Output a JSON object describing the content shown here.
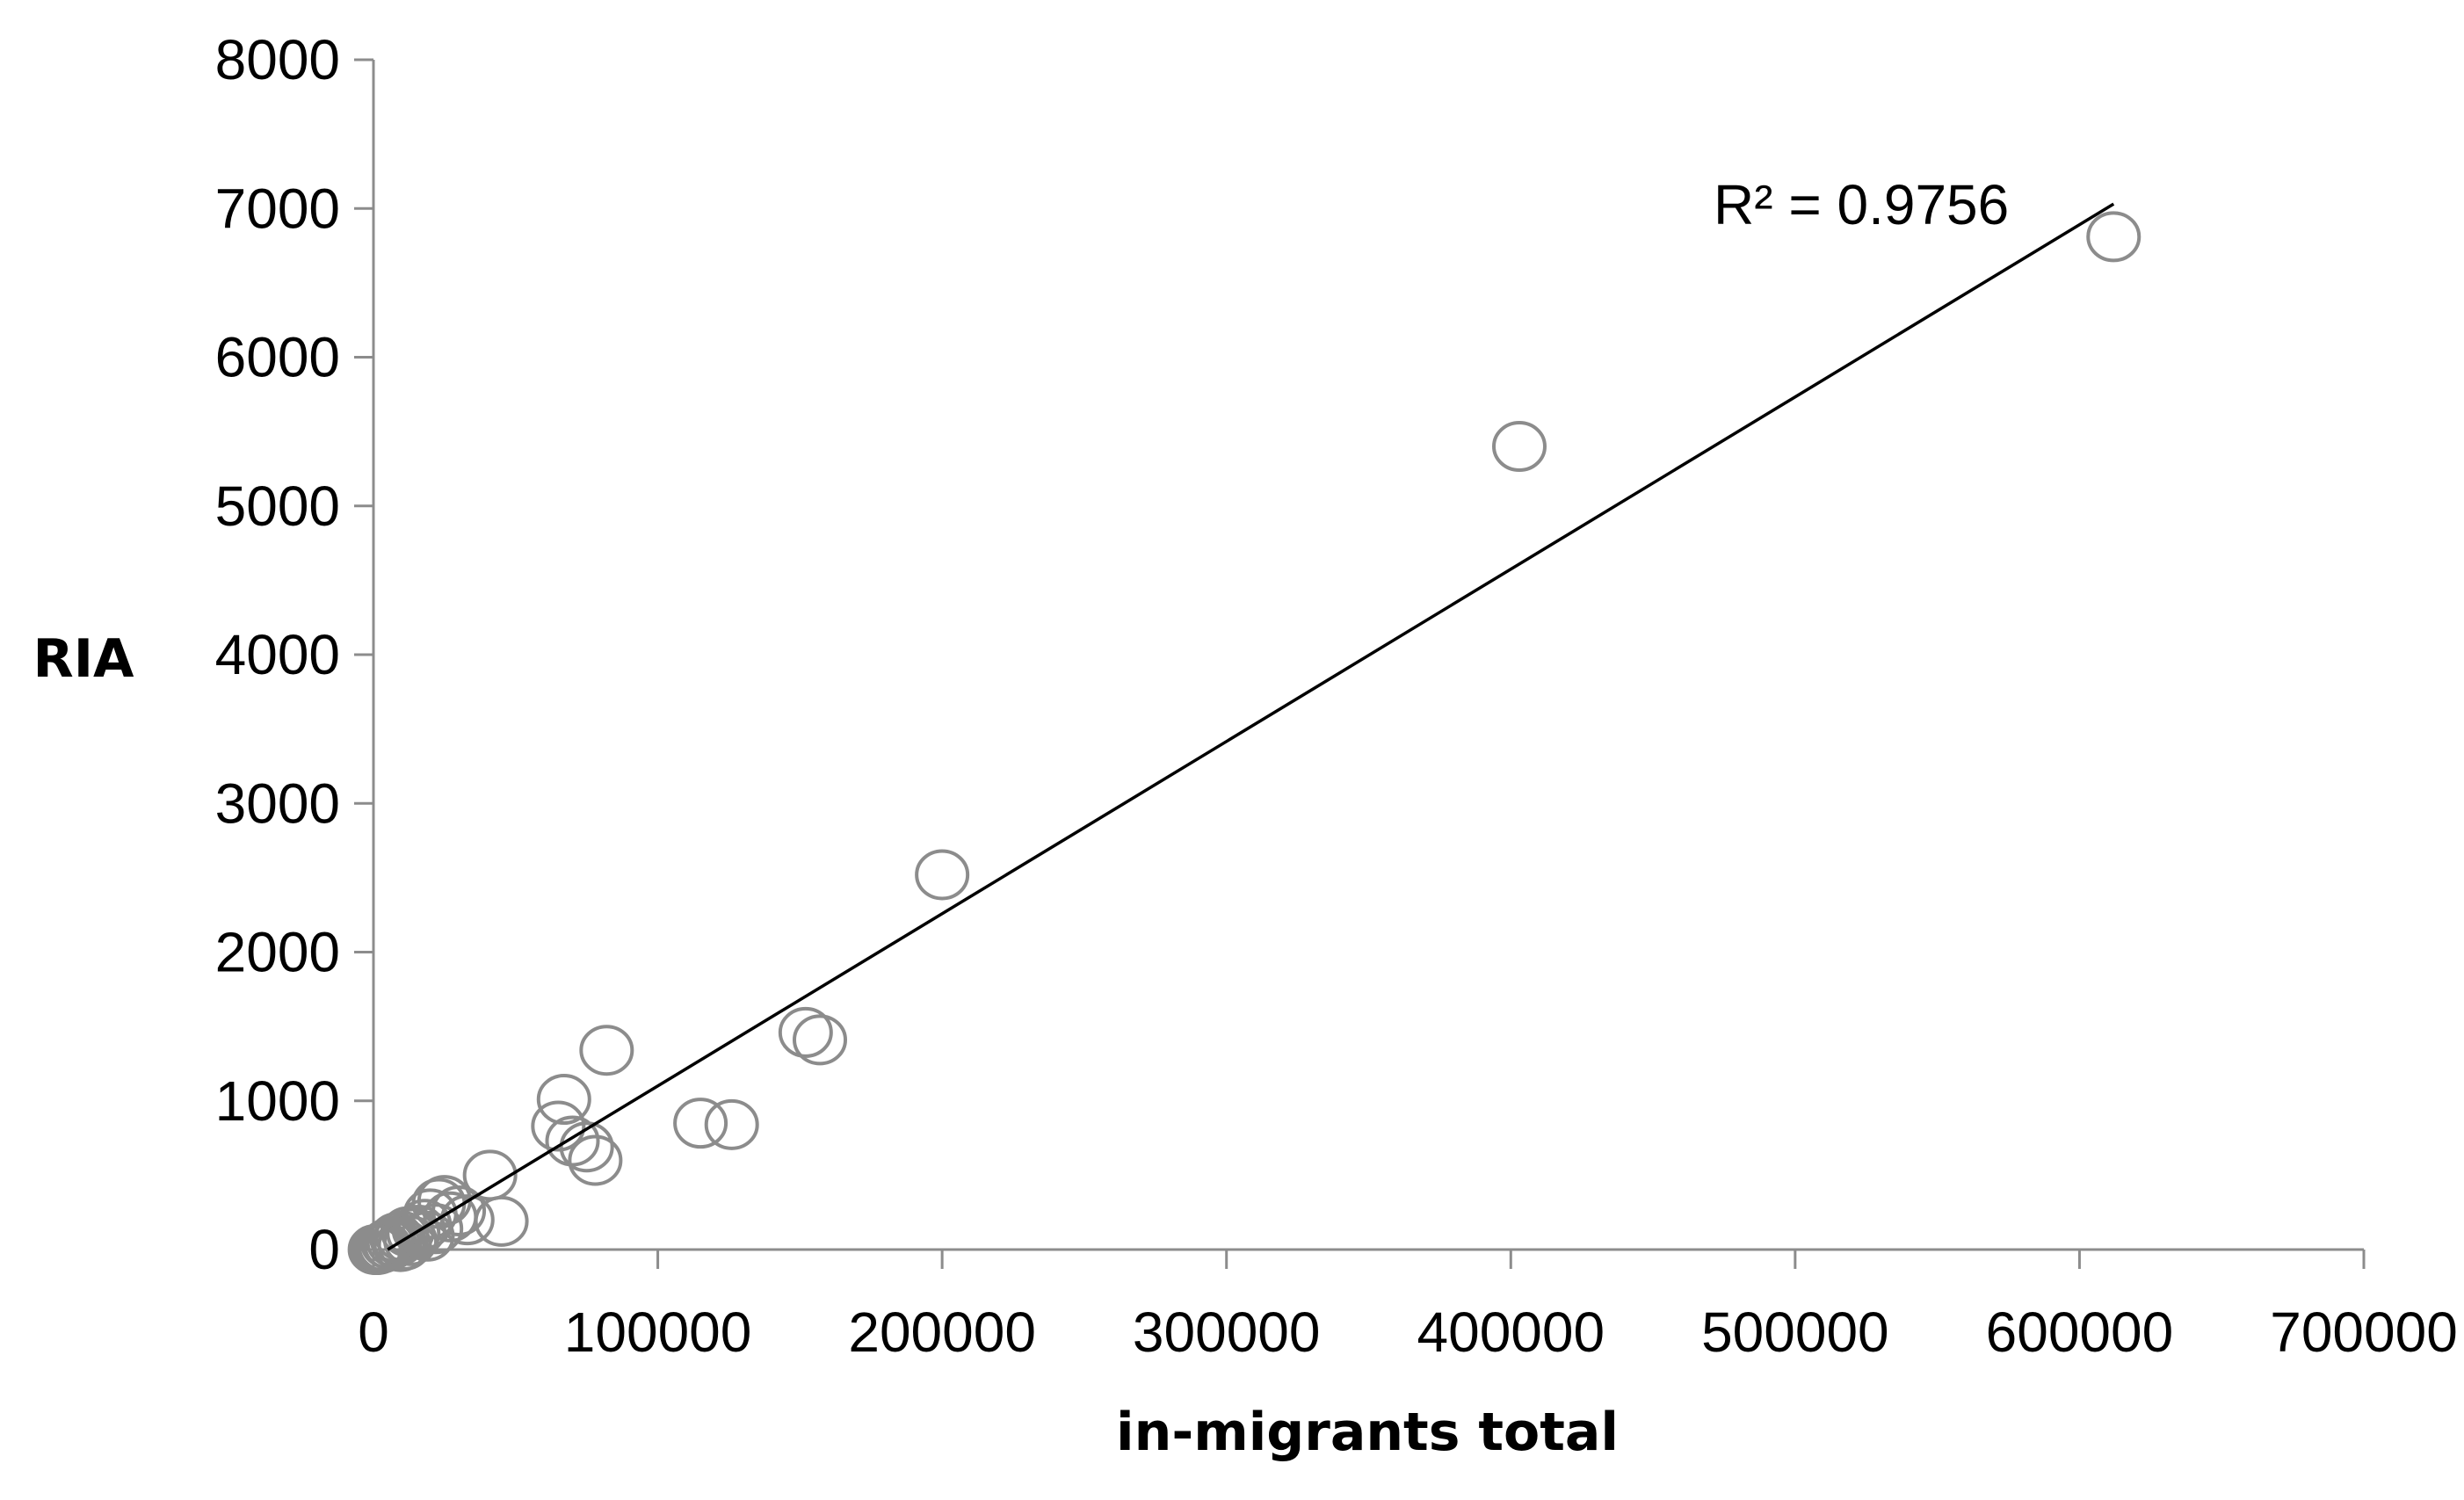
{
  "chart_data": {
    "type": "scatter",
    "xlabel": "in-migrants total",
    "ylabel": "RIA",
    "xlim": [
      0,
      700000
    ],
    "ylim": [
      0,
      8000
    ],
    "xticks": [
      0,
      100000,
      200000,
      300000,
      400000,
      500000,
      600000,
      700000
    ],
    "yticks": [
      0,
      1000,
      2000,
      3000,
      4000,
      5000,
      6000,
      7000,
      8000
    ],
    "grid": false,
    "legend": "none",
    "annotation": "R² = 0.9756",
    "trendline": {
      "type": "linear",
      "x": [
        5000,
        612000
      ],
      "y": [
        0,
        7030
      ]
    },
    "points": [
      [
        612000,
        6810
      ],
      [
        403000,
        5400
      ],
      [
        200000,
        2520
      ],
      [
        152000,
        1460
      ],
      [
        157000,
        1410
      ],
      [
        82000,
        1340
      ],
      [
        67000,
        1010
      ],
      [
        65000,
        830
      ],
      [
        70000,
        730
      ],
      [
        75000,
        690
      ],
      [
        78000,
        600
      ],
      [
        115000,
        850
      ],
      [
        126000,
        840
      ],
      [
        41000,
        500
      ],
      [
        45000,
        190
      ],
      [
        25000,
        330
      ],
      [
        23000,
        310
      ],
      [
        30000,
        260
      ],
      [
        27000,
        220
      ],
      [
        33000,
        200
      ],
      [
        20000,
        240
      ],
      [
        18000,
        170
      ],
      [
        16000,
        130
      ],
      [
        14000,
        110
      ],
      [
        12000,
        120
      ],
      [
        10000,
        90
      ],
      [
        9000,
        60
      ],
      [
        8000,
        80
      ],
      [
        7000,
        50
      ],
      [
        6000,
        30
      ],
      [
        5000,
        40
      ],
      [
        4000,
        20
      ],
      [
        3000,
        10
      ],
      [
        2000,
        5
      ],
      [
        1500,
        0
      ],
      [
        1000,
        0
      ],
      [
        500,
        0
      ],
      [
        22000,
        140
      ],
      [
        19000,
        90
      ],
      [
        13000,
        60
      ],
      [
        11000,
        30
      ],
      [
        9500,
        20
      ]
    ]
  },
  "colors": {
    "marker": "#8c8c8c",
    "trendline": "#000000",
    "axis": "#8c8c8c"
  }
}
